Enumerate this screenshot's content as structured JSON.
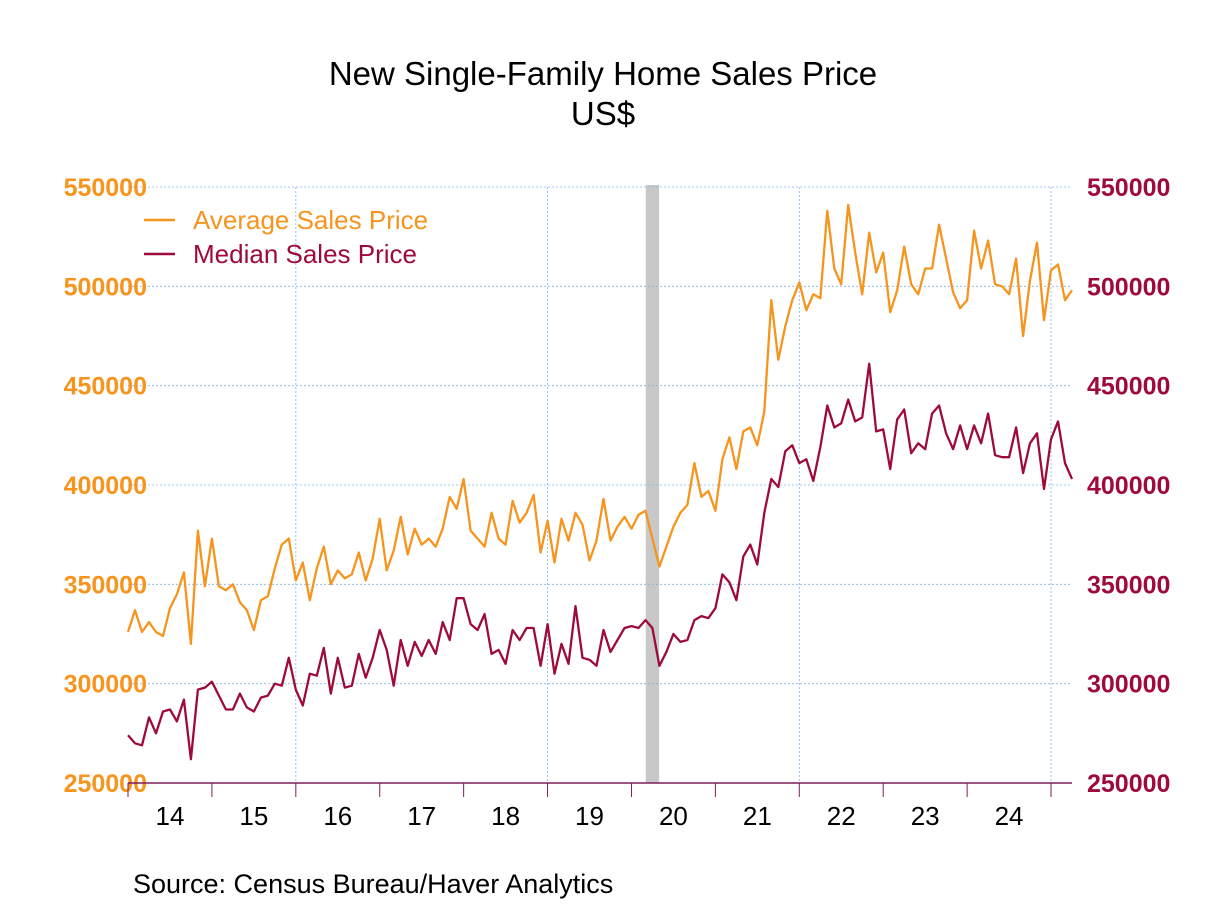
{
  "chart_data": {
    "type": "line",
    "title": "New Single-Family Home Sales Price",
    "subtitle": "US$",
    "source": "Source:  Census Bureau/Haver Analytics",
    "y_left": {
      "min": 250000,
      "max": 550000,
      "ticks": [
        "550000",
        "500000",
        "450000",
        "400000",
        "350000",
        "300000",
        "250000"
      ],
      "color": "#F7941D"
    },
    "y_right": {
      "min": 250000,
      "max": 550000,
      "ticks": [
        "550000",
        "500000",
        "450000",
        "400000",
        "350000",
        "300000",
        "250000"
      ],
      "color": "#9E0B3A"
    },
    "x_start": 2014.0,
    "x_end": 2025.25,
    "year_labels": [
      "14",
      "15",
      "16",
      "17",
      "18",
      "19",
      "20",
      "21",
      "22",
      "23",
      "24"
    ],
    "recession": [
      2020.17,
      2020.33
    ],
    "grid": true,
    "legend_position": "top-left",
    "series": [
      {
        "name": "Average Sales Price",
        "color": "#F7941D",
        "start": 2014.0,
        "values": [
          326000,
          337000,
          326000,
          331000,
          326000,
          324000,
          338000,
          345000,
          356000,
          320000,
          377000,
          349000,
          373000,
          349000,
          347000,
          350000,
          341000,
          337000,
          327000,
          342000,
          344000,
          358000,
          370000,
          373000,
          352000,
          361000,
          342000,
          358000,
          369000,
          350000,
          357000,
          353000,
          355000,
          366000,
          352000,
          363000,
          383000,
          357000,
          367000,
          384000,
          365000,
          378000,
          370000,
          373000,
          369000,
          378000,
          394000,
          388000,
          403000,
          377000,
          373000,
          369000,
          386000,
          373000,
          370000,
          392000,
          381000,
          386000,
          395000,
          366000,
          382000,
          361000,
          383000,
          372000,
          386000,
          380000,
          362000,
          372000,
          393000,
          372000,
          379000,
          384000,
          378000,
          385000,
          387000,
          373000,
          359000,
          369000,
          379000,
          386000,
          390000,
          411000,
          394000,
          397000,
          387000,
          413000,
          424000,
          408000,
          427000,
          429000,
          420000,
          437000,
          493000,
          463000,
          480000,
          493000,
          502000,
          488000,
          496000,
          494000,
          538000,
          509000,
          501000,
          541000,
          517000,
          496000,
          527000,
          507000,
          517000,
          487000,
          498000,
          520000,
          501000,
          496000,
          509000,
          509000,
          531000,
          514000,
          497000,
          489000,
          493000,
          528000,
          509000,
          523000,
          501000,
          500000,
          496000,
          514000,
          475000,
          503000,
          522000,
          483000,
          508000,
          511000,
          493000,
          498000
        ]
      },
      {
        "name": "Median Sales Price",
        "color": "#9E0B3A",
        "start": 2014.0,
        "values": [
          274000,
          270000,
          269000,
          283000,
          275000,
          286000,
          287000,
          281000,
          292000,
          262000,
          297000,
          298000,
          301000,
          294000,
          287000,
          287000,
          295000,
          288000,
          286000,
          293000,
          294000,
          300000,
          299000,
          313000,
          297000,
          289000,
          305000,
          304000,
          318000,
          295000,
          313000,
          298000,
          299000,
          315000,
          303000,
          313000,
          327000,
          317000,
          299000,
          322000,
          309000,
          321000,
          314000,
          322000,
          315000,
          331000,
          322000,
          343000,
          343000,
          330000,
          327000,
          335000,
          315000,
          317000,
          310000,
          327000,
          322000,
          328000,
          328000,
          309000,
          330000,
          305000,
          320000,
          310000,
          339000,
          313000,
          312000,
          309000,
          327000,
          316000,
          322000,
          328000,
          329000,
          328000,
          332000,
          328000,
          309000,
          316000,
          325000,
          321000,
          322000,
          332000,
          334000,
          333000,
          338000,
          355000,
          351000,
          342000,
          364000,
          370000,
          360000,
          386000,
          403000,
          399000,
          417000,
          420000,
          411000,
          413000,
          402000,
          419000,
          440000,
          429000,
          431000,
          443000,
          432000,
          434000,
          461000,
          427000,
          428000,
          408000,
          433000,
          438000,
          416000,
          421000,
          418000,
          436000,
          440000,
          426000,
          418000,
          430000,
          418000,
          430000,
          421000,
          436000,
          415000,
          414000,
          414000,
          429000,
          406000,
          421000,
          426000,
          398000,
          423000,
          432000,
          411000,
          403000
        ]
      }
    ]
  }
}
